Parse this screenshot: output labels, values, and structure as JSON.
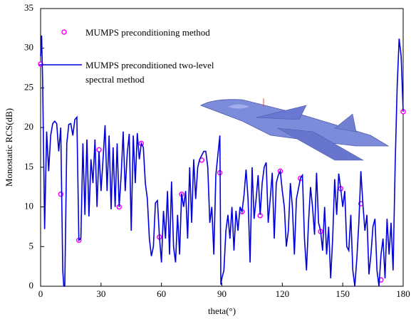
{
  "chart_data": {
    "type": "line",
    "x_label": "theta(°)",
    "y_label": "Monostatic RCS(dB)",
    "xlim": [
      0,
      180
    ],
    "xticks": [
      0,
      30,
      60,
      90,
      120,
      150,
      180
    ],
    "ylim": [
      0,
      35
    ],
    "yticks": [
      0,
      5,
      10,
      15,
      20,
      25,
      30,
      35
    ],
    "grid": false,
    "legend": "upper left",
    "series": [
      {
        "name": "MUMPS preconditioning method",
        "color": "#ff00ff",
        "mode": "markers",
        "x": [
          0,
          10,
          19,
          29,
          39,
          50,
          59,
          70,
          80,
          89,
          100,
          109,
          119,
          129,
          139,
          149,
          159,
          169,
          180
        ],
        "values": [
          28,
          11.6,
          5.8,
          17.2,
          10,
          18,
          6.2,
          11.6,
          15.9,
          14.3,
          9.4,
          8.9,
          14.5,
          13.6,
          6.9,
          12.3,
          10.4,
          0.8,
          22
        ]
      },
      {
        "name": "MUMPS preconditioned two-level spectral method",
        "color": "#0000dd",
        "mode": "line",
        "x": [
          0,
          0.5,
          1,
          2,
          3,
          4,
          5,
          6,
          7,
          8,
          9,
          10,
          11,
          11.5,
          12,
          13,
          14,
          15,
          16,
          17,
          18,
          19,
          20,
          21,
          22,
          23,
          24,
          25,
          26,
          27,
          28,
          29,
          30,
          31,
          32,
          33,
          34,
          35,
          36,
          37,
          38,
          39,
          40,
          41,
          42,
          43,
          44,
          45,
          46,
          47,
          48,
          49,
          50,
          51,
          52,
          53,
          54,
          55,
          56,
          57,
          58,
          59,
          60,
          61,
          62,
          63,
          64,
          65,
          66,
          67,
          68,
          69,
          70,
          71,
          72,
          73,
          74,
          75,
          76,
          77,
          78,
          79,
          80,
          81,
          82,
          83,
          84,
          85,
          86,
          87,
          88,
          89,
          89.5,
          90,
          91,
          92,
          93,
          94,
          95,
          96,
          97,
          98,
          99,
          100,
          101,
          102,
          103,
          104,
          105,
          106,
          107,
          108,
          109,
          110,
          111,
          112,
          113,
          114,
          115,
          116,
          117,
          118,
          119,
          120,
          121,
          122,
          123,
          124,
          125,
          126,
          127,
          128,
          129,
          130,
          131,
          132,
          133,
          134,
          135,
          136,
          137,
          138,
          139,
          140,
          141,
          142,
          143,
          144,
          145,
          146,
          147,
          148,
          149,
          150,
          151,
          152,
          153,
          154,
          155,
          156,
          157,
          158,
          159,
          160,
          161,
          162,
          163,
          164,
          165,
          166,
          167,
          168,
          169,
          170,
          171,
          172,
          173,
          174,
          175,
          176,
          177,
          178,
          179,
          180
        ],
        "values": [
          29,
          31.6,
          26,
          7.2,
          19.5,
          14.5,
          19,
          20.5,
          20.8,
          20.5,
          17,
          20,
          2,
          0,
          0,
          18,
          20.4,
          20.5,
          19,
          21,
          21.3,
          5.8,
          6,
          18,
          9,
          18.5,
          8.8,
          16,
          13,
          18.5,
          10,
          17,
          12,
          16,
          20.3,
          12,
          19,
          9.7,
          17.5,
          10,
          18,
          10,
          14,
          19.5,
          12,
          16.7,
          19.2,
          7,
          19,
          13,
          19.3,
          16,
          18,
          17.5,
          13,
          11,
          6,
          3.8,
          5,
          10.5,
          10.8,
          6.2,
          3,
          9.5,
          6,
          12,
          4,
          13.2,
          5,
          3,
          9,
          4,
          11.7,
          10,
          12,
          6,
          15,
          8,
          16,
          11,
          15,
          16,
          16.5,
          17,
          17,
          15,
          8,
          10,
          4,
          14,
          16.5,
          19,
          0.2,
          1,
          2,
          7,
          9,
          6,
          10,
          4.5,
          9.5,
          7,
          10,
          9.4,
          11.5,
          14.7,
          11,
          3,
          15,
          8.5,
          11,
          14,
          9,
          13,
          15,
          15.6,
          8,
          11,
          14.3,
          6,
          13,
          14,
          14.5,
          12,
          10,
          5,
          7,
          13,
          10,
          4,
          11,
          12.3,
          13.6,
          14,
          6,
          2,
          8,
          12.5,
          10,
          6.5,
          14.3,
          8,
          7,
          4.5,
          10,
          4,
          7.5,
          1,
          6,
          13.5,
          9,
          14.2,
          12.3,
          10,
          12,
          5,
          4.5,
          9,
          2,
          0,
          3.5,
          8,
          14.5,
          10.4,
          7,
          9,
          1.5,
          4,
          7.5,
          8.5,
          2,
          0,
          4,
          6,
          1,
          8.5,
          4,
          8,
          2,
          15,
          25,
          31.2,
          29,
          22
        ]
      }
    ]
  }
}
